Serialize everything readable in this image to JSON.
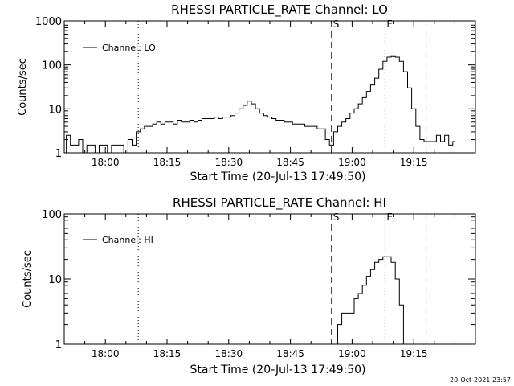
{
  "footer_timestamp": "20-Oct-2021 23:57",
  "chart_data": [
    {
      "type": "line",
      "title": "RHESSI PARTICLE_RATE Channel: LO",
      "xlabel": "Start Time (20-Jul-13 17:49:50)",
      "ylabel": "Counts/sec",
      "yscale": "log",
      "xlim": [
        "17:50",
        "19:30"
      ],
      "ylim": [
        1,
        1000
      ],
      "x_ticks": [
        "18:00",
        "18:15",
        "18:30",
        "18:45",
        "19:00",
        "19:15"
      ],
      "y_ticks": [
        "1",
        "10",
        "100",
        "1000"
      ],
      "legend": {
        "position": "top-left",
        "entries": [
          "Channel: LO"
        ]
      },
      "markers": [
        {
          "time": "18:08",
          "style": "dotted",
          "label": ""
        },
        {
          "time": "18:55",
          "style": "dashed",
          "label": "S"
        },
        {
          "time": "19:08",
          "style": "dotted",
          "label": "E"
        },
        {
          "time": "19:18",
          "style": "dashed",
          "label": ""
        },
        {
          "time": "19:26",
          "style": "dotted",
          "label": ""
        }
      ],
      "series": [
        {
          "name": "Channel: LO",
          "points": [
            [
              "17:50",
              1
            ],
            [
              "17:51",
              2.5
            ],
            [
              "17:52",
              1.5
            ],
            [
              "17:53",
              1.5
            ],
            [
              "17:54",
              2
            ],
            [
              "17:55",
              1
            ],
            [
              "17:56",
              1.5
            ],
            [
              "17:57",
              1.5
            ],
            [
              "17:58",
              1
            ],
            [
              "17:59",
              1.5
            ],
            [
              "18:00",
              1.5
            ],
            [
              "18:01",
              1
            ],
            [
              "18:02",
              1.5
            ],
            [
              "18:03",
              1.5
            ],
            [
              "18:04",
              1.5
            ],
            [
              "18:05",
              1
            ],
            [
              "18:06",
              2
            ],
            [
              "18:07",
              1.5
            ],
            [
              "18:08",
              3
            ],
            [
              "18:09",
              3.5
            ],
            [
              "18:10",
              4
            ],
            [
              "18:11",
              4
            ],
            [
              "18:12",
              4.5
            ],
            [
              "18:13",
              5
            ],
            [
              "18:14",
              4.5
            ],
            [
              "18:15",
              5
            ],
            [
              "18:16",
              5
            ],
            [
              "18:17",
              4.5
            ],
            [
              "18:18",
              5.5
            ],
            [
              "18:19",
              5
            ],
            [
              "18:20",
              5
            ],
            [
              "18:21",
              5.5
            ],
            [
              "18:22",
              5
            ],
            [
              "18:23",
              5.5
            ],
            [
              "18:24",
              6
            ],
            [
              "18:25",
              6
            ],
            [
              "18:26",
              6
            ],
            [
              "18:27",
              6.5
            ],
            [
              "18:28",
              6
            ],
            [
              "18:29",
              6.5
            ],
            [
              "18:30",
              6.5
            ],
            [
              "18:31",
              7
            ],
            [
              "18:32",
              8
            ],
            [
              "18:33",
              10
            ],
            [
              "18:34",
              12
            ],
            [
              "18:35",
              15
            ],
            [
              "18:36",
              13
            ],
            [
              "18:37",
              10
            ],
            [
              "18:38",
              8
            ],
            [
              "18:39",
              7
            ],
            [
              "18:40",
              6.5
            ],
            [
              "18:41",
              6
            ],
            [
              "18:42",
              5.5
            ],
            [
              "18:43",
              5.5
            ],
            [
              "18:44",
              5
            ],
            [
              "18:45",
              5
            ],
            [
              "18:46",
              4.5
            ],
            [
              "18:47",
              4.5
            ],
            [
              "18:48",
              4.5
            ],
            [
              "18:49",
              4
            ],
            [
              "18:50",
              4
            ],
            [
              "18:51",
              4
            ],
            [
              "18:52",
              3.5
            ],
            [
              "18:53",
              3.5
            ],
            [
              "18:54",
              2
            ],
            [
              "18:55",
              1.5
            ],
            [
              "18:56",
              3
            ],
            [
              "18:57",
              4
            ],
            [
              "18:58",
              5
            ],
            [
              "18:59",
              6
            ],
            [
              "19:00",
              8
            ],
            [
              "19:01",
              10
            ],
            [
              "19:02",
              13
            ],
            [
              "19:03",
              18
            ],
            [
              "19:04",
              25
            ],
            [
              "19:05",
              35
            ],
            [
              "19:06",
              50
            ],
            [
              "19:07",
              80
            ],
            [
              "19:08",
              120
            ],
            [
              "19:09",
              150
            ],
            [
              "19:10",
              155
            ],
            [
              "19:11",
              150
            ],
            [
              "19:12",
              120
            ],
            [
              "19:13",
              70
            ],
            [
              "19:14",
              30
            ],
            [
              "19:15",
              10
            ],
            [
              "19:16",
              4
            ],
            [
              "19:17",
              2
            ],
            [
              "19:18",
              1.8
            ],
            [
              "19:19",
              1.8
            ],
            [
              "19:20",
              1.8
            ],
            [
              "19:21",
              2.5
            ],
            [
              "19:22",
              1.8
            ],
            [
              "19:23",
              2.5
            ],
            [
              "19:24",
              1.5
            ],
            [
              "19:25",
              1.8
            ]
          ]
        }
      ]
    },
    {
      "type": "line",
      "title": "RHESSI PARTICLE_RATE Channel: HI",
      "xlabel": "Start Time (20-Jul-13 17:49:50)",
      "ylabel": "Counts/sec",
      "yscale": "log",
      "xlim": [
        "17:50",
        "19:30"
      ],
      "ylim": [
        1,
        100
      ],
      "x_ticks": [
        "18:00",
        "18:15",
        "18:30",
        "18:45",
        "19:00",
        "19:15"
      ],
      "y_ticks": [
        "1",
        "10",
        "100"
      ],
      "legend": {
        "position": "top-left",
        "entries": [
          "Channel: HI"
        ]
      },
      "markers": [
        {
          "time": "18:08",
          "style": "dotted",
          "label": ""
        },
        {
          "time": "18:55",
          "style": "dashed",
          "label": "S"
        },
        {
          "time": "19:08",
          "style": "dotted",
          "label": "E"
        },
        {
          "time": "19:18",
          "style": "dashed",
          "label": ""
        },
        {
          "time": "19:26",
          "style": "dotted",
          "label": ""
        }
      ],
      "series": [
        {
          "name": "Channel: HI",
          "points": [
            [
              "18:56",
              1
            ],
            [
              "18:57",
              2
            ],
            [
              "18:58",
              3
            ],
            [
              "18:59",
              3
            ],
            [
              "19:00",
              3
            ],
            [
              "19:01",
              5
            ],
            [
              "19:02",
              6
            ],
            [
              "19:03",
              8
            ],
            [
              "19:04",
              11
            ],
            [
              "19:05",
              14
            ],
            [
              "19:06",
              18
            ],
            [
              "19:07",
              20
            ],
            [
              "19:08",
              22
            ],
            [
              "19:09",
              22
            ],
            [
              "19:10",
              18
            ],
            [
              "19:11",
              10
            ],
            [
              "19:12",
              4
            ],
            [
              "19:13",
              1
            ]
          ]
        }
      ]
    }
  ]
}
